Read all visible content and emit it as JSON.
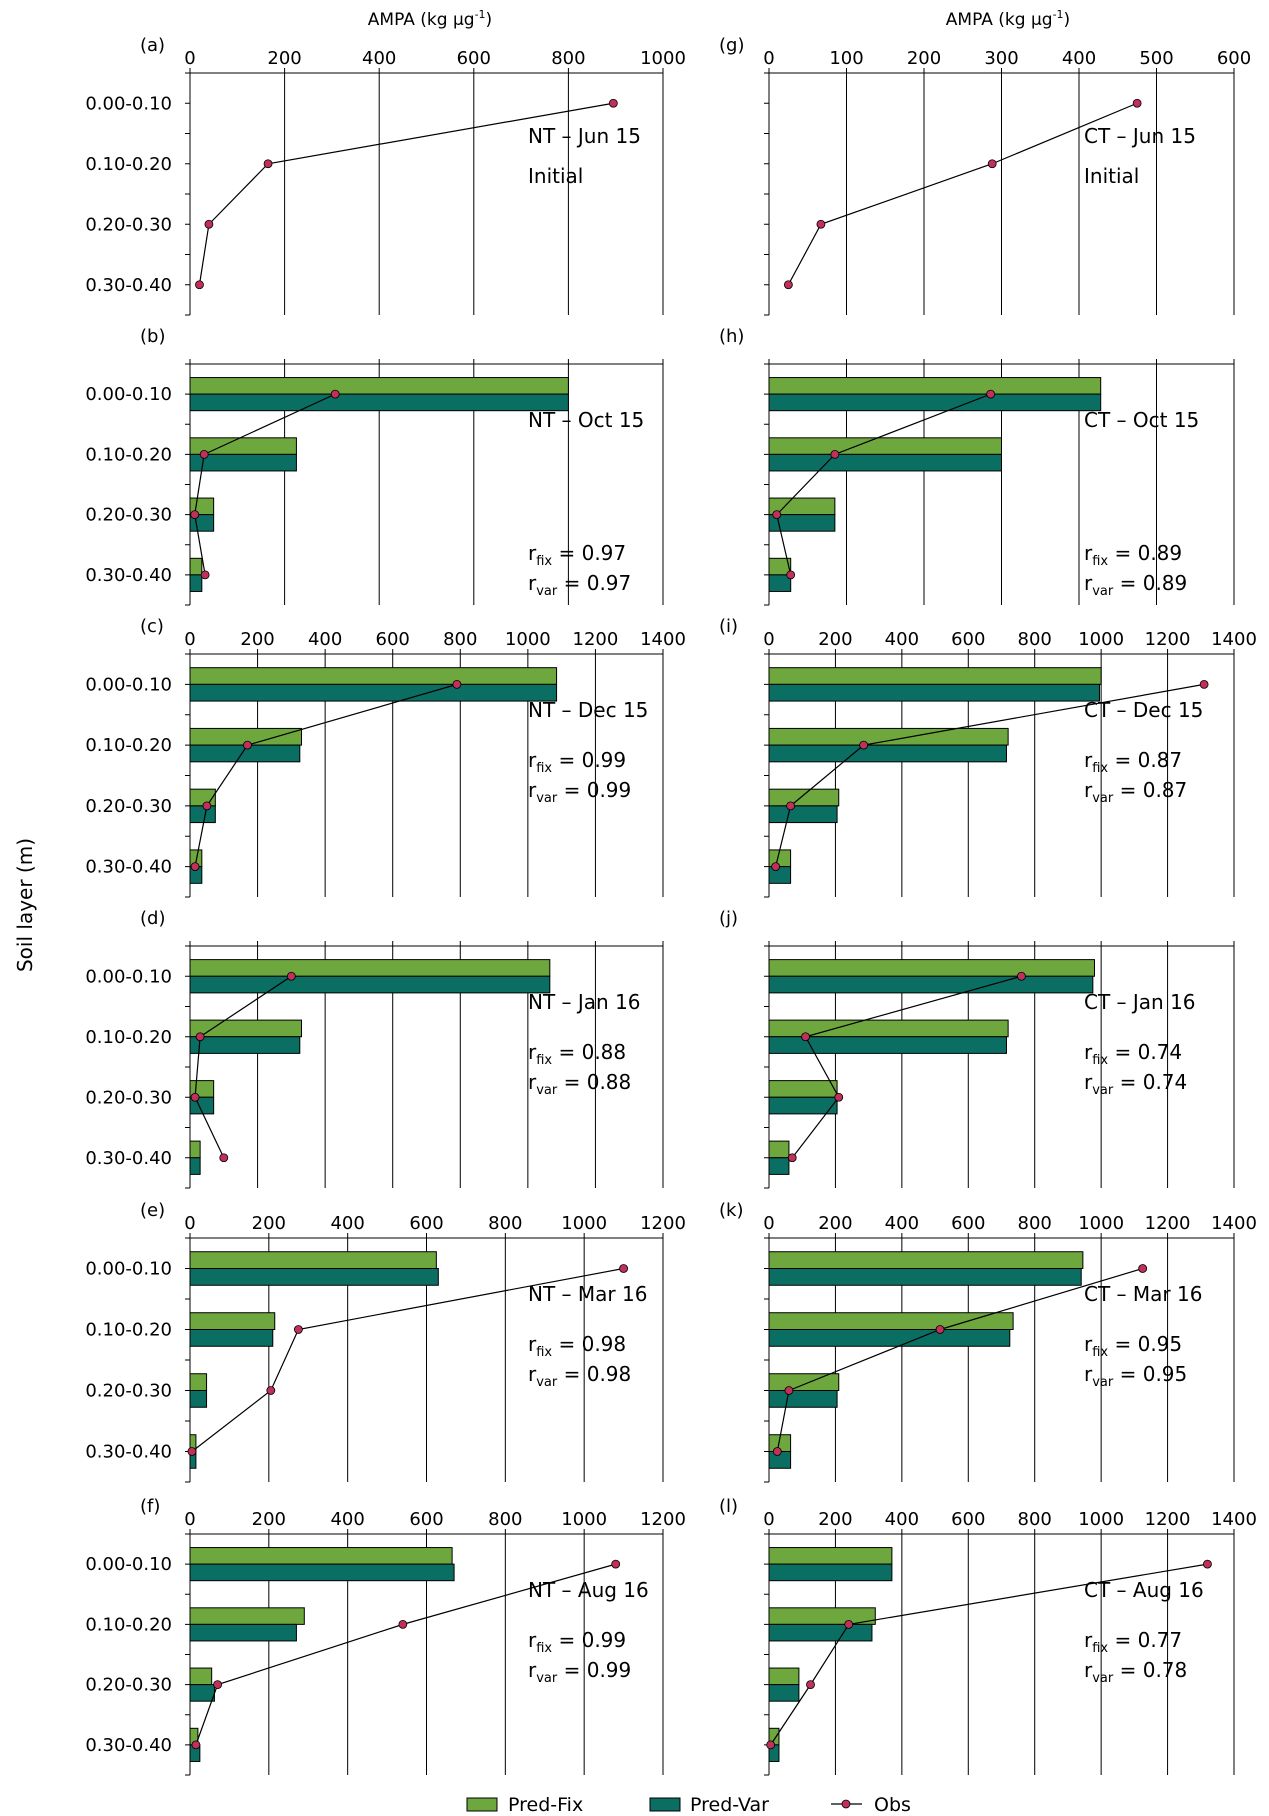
{
  "figure": {
    "y_axis_label": "Soil layer (m)",
    "x_axis_label": "AMPA (kg µg",
    "x_axis_label_sup": "-1",
    "x_axis_label_close": ")",
    "fix_label_sub": "fix",
    "var_label_sub": "var",
    "r_prefix": "r",
    "r_equals": " = "
  },
  "legend": {
    "items": [
      {
        "label": "Pred-Fix",
        "color": "#6ea73d"
      },
      {
        "label": "Pred-Var",
        "color": "#0b6e62"
      },
      {
        "label": "Obs",
        "color": "#c0305a"
      }
    ]
  },
  "colors": {
    "pred_fix": "#6ea73d",
    "pred_var": "#0b6e62",
    "obs": "#c0305a"
  },
  "chart_data": [
    {
      "type": "bar",
      "panel": "(a)",
      "title": "NT – Jun 15",
      "subtitle": "Initial",
      "categories": [
        "0.00-0.10",
        "0.10-0.20",
        "0.20-0.30",
        "0.30-0.40"
      ],
      "xlim": [
        0,
        1000
      ],
      "xticks": [
        0,
        200,
        400,
        600,
        800,
        1000
      ],
      "pred_fix": null,
      "pred_var": null,
      "obs": [
        895,
        165,
        40,
        20
      ],
      "r_fix": "",
      "r_var": ""
    },
    {
      "type": "bar",
      "panel": "(b)",
      "title": "NT – Oct 15",
      "categories": [
        "0.00-0.10",
        "0.10-0.20",
        "0.20-0.30",
        "0.30-0.40"
      ],
      "xlim": [
        0,
        1000
      ],
      "xticks": [
        0,
        200,
        400,
        600,
        800,
        1000
      ],
      "pred_fix": [
        800,
        225,
        50,
        25
      ],
      "pred_var": [
        800,
        225,
        50,
        25
      ],
      "obs": [
        307,
        30,
        10,
        32
      ],
      "r_fix": "0.97",
      "r_var": "0.97"
    },
    {
      "type": "bar",
      "panel": "(c)",
      "title": "NT – Dec 15",
      "categories": [
        "0.00-0.10",
        "0.10-0.20",
        "0.20-0.30",
        "0.30-0.40"
      ],
      "xlim": [
        0,
        1400
      ],
      "xticks": [
        0,
        200,
        400,
        600,
        800,
        1000,
        1200,
        1400
      ],
      "pred_fix": [
        1085,
        330,
        75,
        35
      ],
      "pred_var": [
        1085,
        325,
        75,
        35
      ],
      "obs": [
        790,
        170,
        50,
        15
      ],
      "r_fix": "0.99",
      "r_var": "0.99"
    },
    {
      "type": "bar",
      "panel": "(d)",
      "title": "NT – Jan 16",
      "categories": [
        "0.00-0.10",
        "0.10-0.20",
        "0.20-0.30",
        "0.30-0.40"
      ],
      "xlim": [
        0,
        1400
      ],
      "xticks": [
        0,
        200,
        400,
        600,
        800,
        1000,
        1200,
        1400
      ],
      "pred_fix": [
        1065,
        330,
        70,
        30
      ],
      "pred_var": [
        1065,
        325,
        70,
        30
      ],
      "obs": [
        300,
        30,
        15,
        100
      ],
      "r_fix": "0.88",
      "r_var": "0.88"
    },
    {
      "type": "bar",
      "panel": "(e)",
      "title": "NT – Mar 16",
      "categories": [
        "0.00-0.10",
        "0.10-0.20",
        "0.20-0.30",
        "0.30-0.40"
      ],
      "xlim": [
        0,
        1200
      ],
      "xticks": [
        0,
        200,
        400,
        600,
        800,
        1000,
        1200
      ],
      "pred_fix": [
        625,
        215,
        42,
        15
      ],
      "pred_var": [
        630,
        210,
        42,
        15
      ],
      "obs": [
        1100,
        275,
        205,
        5
      ],
      "r_fix": "0.98",
      "r_var": "0.98"
    },
    {
      "type": "bar",
      "panel": "(f)",
      "title": "NT – Aug 16",
      "categories": [
        "0.00-0.10",
        "0.10-0.20",
        "0.20-0.30",
        "0.30-0.40"
      ],
      "xlim": [
        0,
        1200
      ],
      "xticks": [
        0,
        200,
        400,
        600,
        800,
        1000,
        1200
      ],
      "pred_fix": [
        665,
        290,
        55,
        20
      ],
      "pred_var": [
        670,
        270,
        62,
        25
      ],
      "obs": [
        1080,
        540,
        70,
        15
      ],
      "r_fix": "0.99",
      "r_var": "0.99"
    },
    {
      "type": "bar",
      "panel": "(g)",
      "title": "CT – Jun 15",
      "subtitle": "Initial",
      "categories": [
        "0.00-0.10",
        "0.10-0.20",
        "0.20-0.30",
        "0.30-0.40"
      ],
      "xlim": [
        0,
        600
      ],
      "xticks": [
        0,
        100,
        200,
        300,
        400,
        500,
        600
      ],
      "pred_fix": null,
      "pred_var": null,
      "obs": [
        475,
        288,
        67,
        25
      ],
      "r_fix": "",
      "r_var": ""
    },
    {
      "type": "bar",
      "panel": "(h)",
      "title": "CT – Oct 15",
      "categories": [
        "0.00-0.10",
        "0.10-0.20",
        "0.20-0.30",
        "0.30-0.40"
      ],
      "xlim": [
        0,
        600
      ],
      "xticks": [
        0,
        100,
        200,
        300,
        400,
        500,
        600
      ],
      "pred_fix": [
        428,
        300,
        85,
        28
      ],
      "pred_var": [
        428,
        300,
        85,
        28
      ],
      "obs": [
        286,
        85,
        10,
        28
      ],
      "r_fix": "0.89",
      "r_var": "0.89"
    },
    {
      "type": "bar",
      "panel": "(i)",
      "title": "CT – Dec 15",
      "categories": [
        "0.00-0.10",
        "0.10-0.20",
        "0.20-0.30",
        "0.30-0.40"
      ],
      "xlim": [
        0,
        1400
      ],
      "xticks": [
        0,
        200,
        400,
        600,
        800,
        1000,
        1200,
        1400
      ],
      "pred_fix": [
        1000,
        720,
        210,
        65
      ],
      "pred_var": [
        995,
        715,
        205,
        65
      ],
      "obs": [
        1310,
        285,
        65,
        20
      ],
      "r_fix": "0.87",
      "r_var": "0.87"
    },
    {
      "type": "bar",
      "panel": "(j)",
      "title": "CT – Jan 16",
      "categories": [
        "0.00-0.10",
        "0.10-0.20",
        "0.20-0.30",
        "0.30-0.40"
      ],
      "xlim": [
        0,
        1400
      ],
      "xticks": [
        0,
        200,
        400,
        600,
        800,
        1000,
        1200,
        1400
      ],
      "pred_fix": [
        980,
        720,
        205,
        60
      ],
      "pred_var": [
        975,
        715,
        205,
        60
      ],
      "obs": [
        760,
        110,
        210,
        70
      ],
      "r_fix": "0.74",
      "r_var": "0.74"
    },
    {
      "type": "bar",
      "panel": "(k)",
      "title": "CT – Mar 16",
      "categories": [
        "0.00-0.10",
        "0.10-0.20",
        "0.20-0.30",
        "0.30-0.40"
      ],
      "xlim": [
        0,
        1400
      ],
      "xticks": [
        0,
        200,
        400,
        600,
        800,
        1000,
        1200,
        1400
      ],
      "pred_fix": [
        945,
        735,
        210,
        65
      ],
      "pred_var": [
        940,
        725,
        205,
        65
      ],
      "obs": [
        1125,
        515,
        60,
        25
      ],
      "r_fix": "0.95",
      "r_var": "0.95"
    },
    {
      "type": "bar",
      "panel": "(l)",
      "title": "CT – Aug 16",
      "categories": [
        "0.00-0.10",
        "0.10-0.20",
        "0.20-0.30",
        "0.30-0.40"
      ],
      "xlim": [
        0,
        1400
      ],
      "xticks": [
        0,
        200,
        400,
        600,
        800,
        1000,
        1200,
        1400
      ],
      "pred_fix": [
        370,
        320,
        90,
        30
      ],
      "pred_var": [
        370,
        310,
        90,
        30
      ],
      "obs": [
        1320,
        240,
        125,
        5
      ],
      "r_fix": "0.77",
      "r_var": "0.78"
    }
  ]
}
